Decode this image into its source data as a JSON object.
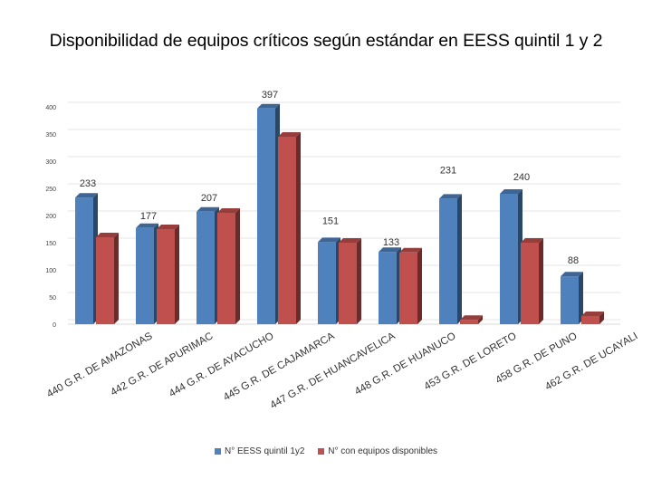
{
  "chart_data": {
    "type": "bar",
    "title": "Disponibilidad de equipos críticos según estándar en EESS quintil 1 y 2",
    "categories": [
      "440 G.R. DE AMAZONAS",
      "442 G.R. DE APURIMAC",
      "444 G.R. DE AYACUCHO",
      "445 G.R. DE CAJAMARCA",
      "447 G.R. DE HUANCAVELICA",
      "448 G.R. DE HUANUCO",
      "453 G.R. DE LORETO",
      "458 G.R. DE PUNO",
      "462 G.R. DE UCAYALI"
    ],
    "series": [
      {
        "name": "N° EESS quintil 1y2",
        "color": "#4f81bd",
        "values": [
          233,
          177,
          207,
          397,
          151,
          133,
          231,
          240,
          88
        ],
        "labels": [
          "233",
          "177",
          "207",
          "397",
          "151",
          "133",
          "231",
          "240",
          "88"
        ]
      },
      {
        "name": "N° con equipos disponibles",
        "color": "#c0504d",
        "values": [
          160,
          175,
          205,
          345,
          150,
          132,
          8,
          150,
          15
        ]
      }
    ],
    "ylim": [
      0,
      400
    ],
    "yticks": [
      "0",
      "50",
      "100",
      "150",
      "200",
      "250",
      "300",
      "350",
      "400"
    ],
    "grid": true,
    "legend": "bottom-center",
    "xlabel": "",
    "ylabel": ""
  }
}
